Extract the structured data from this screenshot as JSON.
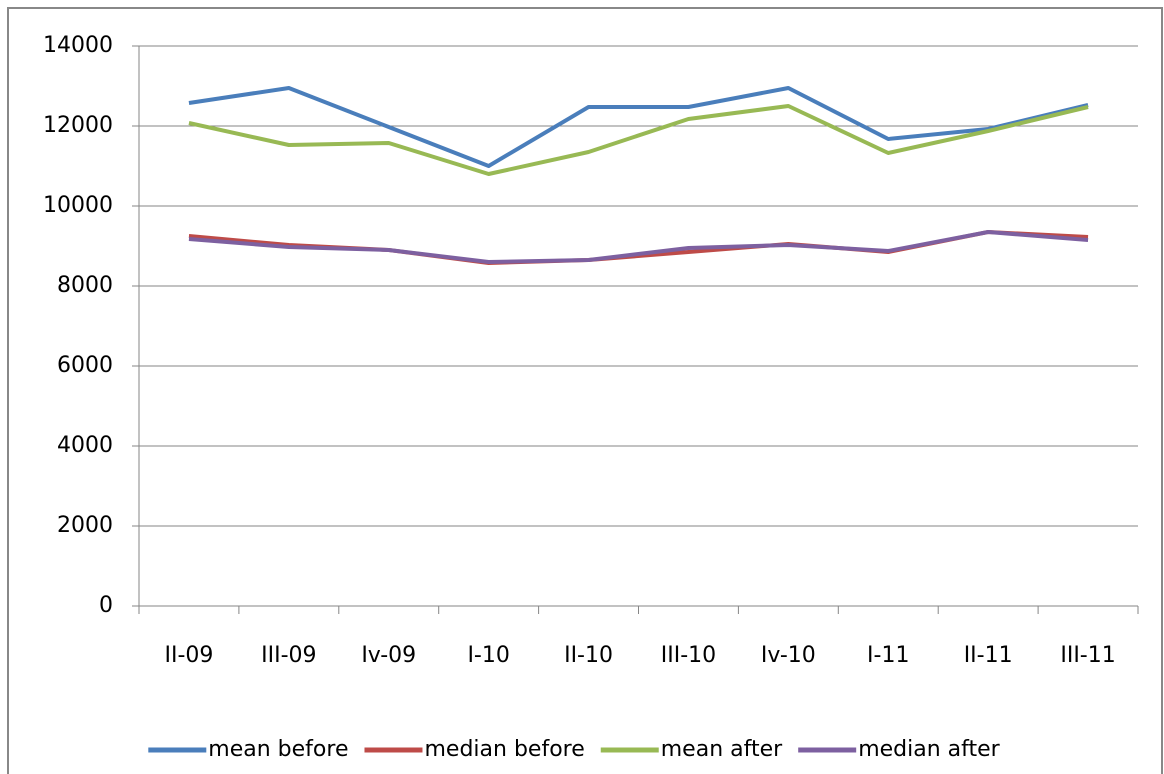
{
  "chart_data": {
    "type": "line",
    "categories": [
      "II-09",
      "III-09",
      "Iv-09",
      "I-10",
      "II-10",
      "III-10",
      "Iv-10",
      "I-11",
      "II-11",
      "III-11"
    ],
    "series": [
      {
        "name": "mean before",
        "color": "#4a7ebb",
        "values": [
          12575,
          12950,
          11975,
          11000,
          12475,
          12475,
          12950,
          11675,
          11925,
          12525
        ]
      },
      {
        "name": "median before",
        "color": "#be4b48",
        "values": [
          9250,
          9025,
          8900,
          8575,
          8650,
          8850,
          9050,
          8850,
          9350,
          9225
        ]
      },
      {
        "name": "mean after",
        "color": "#98b954",
        "values": [
          12075,
          11525,
          11575,
          10800,
          11350,
          12175,
          12500,
          11325,
          11875,
          12475
        ]
      },
      {
        "name": "median after",
        "color": "#7d60a0",
        "values": [
          9175,
          8975,
          8900,
          8600,
          8650,
          8950,
          9025,
          8875,
          9350,
          9150
        ]
      }
    ],
    "ylim": [
      0,
      14000
    ],
    "yticks": [
      0,
      2000,
      4000,
      6000,
      8000,
      10000,
      12000,
      14000
    ],
    "grid": true,
    "legend": "bottom"
  }
}
